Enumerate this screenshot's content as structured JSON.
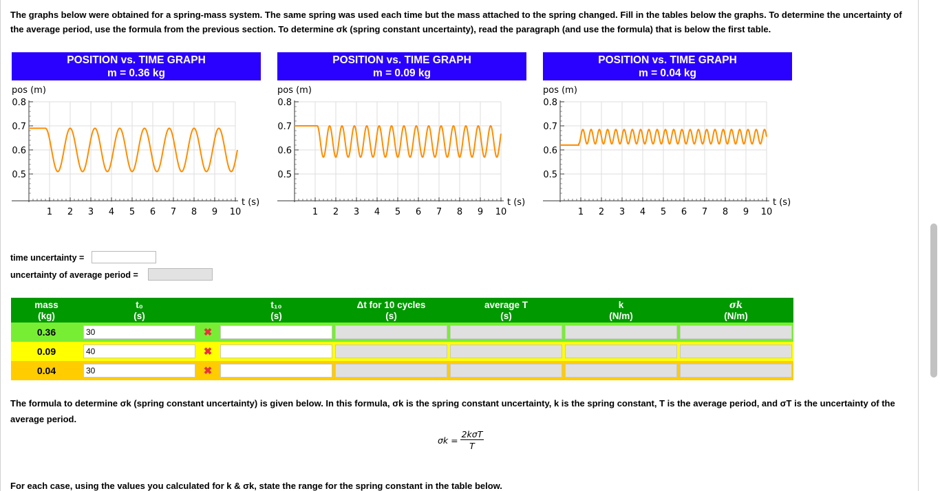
{
  "intro": "The graphs below were obtained for a spring-mass system. The same spring was used each time but the mass attached to the spring changed. Fill in the tables below the graphs. To determine the uncertainty of the average period, use the formula from the previous section. To determine σk (spring constant uncertainty), read the paragraph (and use the formula) that is below the first table.",
  "graphs": [
    {
      "title": "POSITION vs. TIME GRAPH",
      "subtitle": "m = 0.36 kg"
    },
    {
      "title": "POSITION vs. TIME GRAPH",
      "subtitle": "m = 0.09 kg"
    },
    {
      "title": "POSITION vs. TIME GRAPH",
      "subtitle": "m = 0.04 kg"
    }
  ],
  "chart_data": [
    {
      "type": "line",
      "title": "POSITION vs. TIME GRAPH m = 0.36 kg",
      "ylabel": "pos (m)",
      "xlabel": "t (s)",
      "xlim": [
        0,
        10
      ],
      "ylim": [
        0.4,
        0.8
      ],
      "xticks": [
        "1",
        "2",
        "3",
        "4",
        "5",
        "6",
        "7",
        "8",
        "9",
        "10"
      ],
      "yticks": [
        "0.5",
        "0.6",
        "0.7",
        "0.8"
      ],
      "series": [
        {
          "start_time": 0.8,
          "rest_value": 0.69,
          "center": 0.6,
          "amplitude": 0.09,
          "period": 1.2,
          "end_time": 10.1,
          "color": "#ff8c00"
        }
      ]
    },
    {
      "type": "line",
      "title": "POSITION vs. TIME GRAPH m = 0.09 kg",
      "ylabel": "pos (m)",
      "xlabel": "t (s)",
      "xlim": [
        0,
        10
      ],
      "ylim": [
        0.4,
        0.8
      ],
      "xticks": [
        "1",
        "2",
        "3",
        "4",
        "5",
        "6",
        "7",
        "8",
        "9",
        "10"
      ],
      "yticks": [
        "0.5",
        "0.6",
        "0.7",
        "0.8"
      ],
      "series": [
        {
          "start_time": 1.1,
          "rest_value": 0.7,
          "center": 0.635,
          "amplitude": 0.065,
          "period": 0.6,
          "end_time": 10.0,
          "color": "#ff8c00"
        }
      ]
    },
    {
      "type": "line",
      "title": "POSITION vs. TIME GRAPH m = 0.04 kg",
      "ylabel": "pos (m)",
      "xlabel": "t (s)",
      "xlim": [
        0,
        10
      ],
      "ylim": [
        0.4,
        0.8
      ],
      "xticks": [
        "1",
        "2",
        "3",
        "4",
        "5",
        "6",
        "7",
        "8",
        "9",
        "10"
      ],
      "yticks": [
        "0.5",
        "0.6",
        "0.7",
        "0.8"
      ],
      "series": [
        {
          "start_time": 0.9,
          "rest_value": 0.62,
          "center": 0.655,
          "amplitude": 0.03,
          "period": 0.4,
          "end_time": 10.0,
          "color": "#ff8c00"
        }
      ]
    }
  ],
  "time_uncertainty": {
    "label": "time uncertainty =",
    "value": ""
  },
  "period_uncertainty": {
    "label": "uncertainty of average period =",
    "value": ""
  },
  "table": {
    "headers": [
      {
        "line1": "mass",
        "line2": "(kg)"
      },
      {
        "line1": "t₀",
        "line2": "(s)"
      },
      {
        "line1": "",
        "line2": ""
      },
      {
        "line1": "t₁₀",
        "line2": "(s)"
      },
      {
        "line1": "Δt for 10 cycles",
        "line2": "(s)"
      },
      {
        "line1": "average T",
        "line2": "(s)"
      },
      {
        "line1": "k",
        "line2": "(N/m)"
      },
      {
        "line1": "σk",
        "line2": "(N/m)"
      }
    ],
    "rows": [
      {
        "mass": "0.36",
        "t0": "30",
        "mark": "✖",
        "t10": "",
        "dt": "",
        "T": "",
        "k": "",
        "sk": ""
      },
      {
        "mass": "0.09",
        "t0": "40",
        "mark": "✖",
        "t10": "",
        "dt": "",
        "T": "",
        "k": "",
        "sk": ""
      },
      {
        "mass": "0.04",
        "t0": "30",
        "mark": "✖",
        "t10": "",
        "dt": "",
        "T": "",
        "k": "",
        "sk": ""
      }
    ],
    "row_colors": [
      "#77ee33",
      "#ffff00",
      "#ffcc00"
    ]
  },
  "formula_text": "The formula to determine σk (spring constant uncertainty) is given below. In this formula, σk is the spring constant uncertainty, k is the spring constant, T is the average period, and σT is the uncertainty of the average period.",
  "formula": {
    "lhs": "σk =",
    "numerator": "2kσT",
    "denominator": "T"
  },
  "bottom_text": "For each case, using the values you calculated for k & σk, state the range for the spring constant in the table below."
}
